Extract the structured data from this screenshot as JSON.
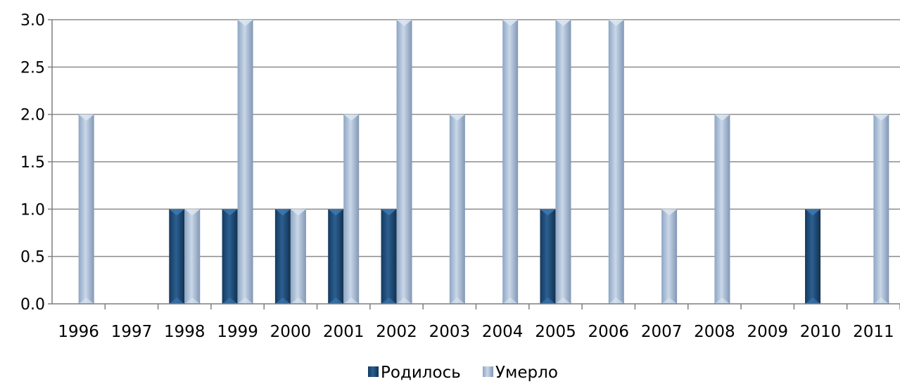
{
  "chart_data": {
    "type": "bar",
    "title": "",
    "xlabel": "",
    "ylabel": "",
    "categories": [
      "1996",
      "1997",
      "1998",
      "1999",
      "2000",
      "2001",
      "2002",
      "2003",
      "2004",
      "2005",
      "2006",
      "2007",
      "2008",
      "2009",
      "2010",
      "2011"
    ],
    "series": [
      {
        "name": "Родилось",
        "color": "#1f4e79",
        "values": [
          0,
          0,
          1,
          1,
          1,
          1,
          1,
          0,
          0,
          1,
          0,
          0,
          0,
          0,
          1,
          0
        ]
      },
      {
        "name": "Умерло",
        "color": "#a9bcd3",
        "values": [
          2,
          0,
          1,
          3,
          1,
          2,
          3,
          2,
          3,
          3,
          3,
          1,
          2,
          0,
          0,
          2
        ]
      }
    ],
    "yticks": [
      "0.0",
      "0.5",
      "1.0",
      "1.5",
      "2.0",
      "2.5",
      "3.0"
    ],
    "ylim": [
      0,
      3
    ],
    "grid": true,
    "legend_position": "bottom"
  }
}
